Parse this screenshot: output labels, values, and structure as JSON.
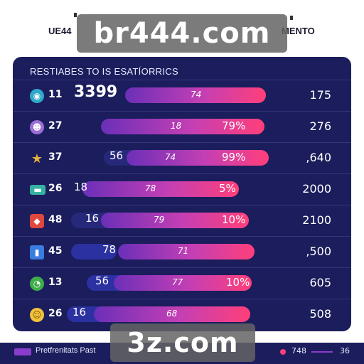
{
  "header": {
    "left_text": "UE44",
    "right_text": "MENTO"
  },
  "watermarks": {
    "top": "br444.com",
    "bottom": "3z.com"
  },
  "panel": {
    "title": "RESTIABES TO IS ESATÍORRICS",
    "rows": [
      {
        "icon": "globe-icon",
        "icon_glyph": "◉",
        "icon_color": "#2fa8c9",
        "num": "11",
        "left": "3399",
        "left_big": true,
        "mid": "74",
        "end": "",
        "right": "175"
      },
      {
        "icon": "face-icon",
        "icon_glyph": "☻",
        "icon_color": "#9a6fd6",
        "num": "27",
        "left": "",
        "left_big": false,
        "mid": "18",
        "end": "79%",
        "right": "276"
      },
      {
        "icon": "star-icon",
        "icon_glyph": "★",
        "icon_color": "#e2b23a",
        "num": "37",
        "left": "56",
        "left_big": false,
        "mid": "74",
        "end": "99%",
        "right": ",640"
      },
      {
        "icon": "card-icon",
        "icon_glyph": "▬",
        "icon_color": "#36b2a0",
        "num": "26",
        "left": "18",
        "left_big": false,
        "mid": "78",
        "end": "5%",
        "right": "2000"
      },
      {
        "icon": "app-icon",
        "icon_glyph": "◆",
        "icon_color": "#e0483e",
        "num": "48",
        "left": "16",
        "left_big": false,
        "mid": "79",
        "end": "10%",
        "right": "2100"
      },
      {
        "icon": "chart-icon",
        "icon_glyph": "▮",
        "icon_color": "#3a7de0",
        "num": "45",
        "left": "78",
        "left_big": false,
        "mid": "71",
        "end": "",
        "right": ",500"
      },
      {
        "icon": "clock-icon",
        "icon_glyph": "◔",
        "icon_color": "#3fae4a",
        "num": "13",
        "left": "56",
        "left_big": false,
        "mid": "77",
        "end": "10%",
        "right": "605"
      },
      {
        "icon": "smile-icon",
        "icon_glyph": "☺",
        "icon_color": "#f0c23e",
        "num": "26",
        "left": "16",
        "left_big": false,
        "mid": "68",
        "end": "",
        "right": "508"
      }
    ]
  },
  "legend": {
    "label": "Pretfrenitats Past",
    "val_a": "748",
    "val_b": "36"
  }
}
